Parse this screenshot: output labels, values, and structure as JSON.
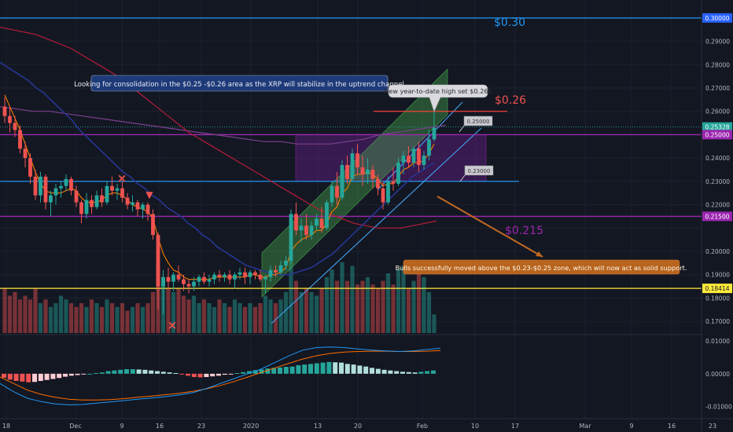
{
  "chart_data": [
    {
      "type": "candlestick",
      "title": "",
      "ylabel": "",
      "ylim": [
        0.165,
        0.305
      ],
      "grid": true,
      "price_axis_ticks": [
        "0.29000",
        "0.28000",
        "0.27000",
        "0.26000",
        "0.24000",
        "0.23000",
        "0.22000",
        "0.20000",
        "0.19000",
        "0.18000",
        "0.17000"
      ],
      "price_tags": [
        {
          "label": "0.30000",
          "value": 0.3,
          "color": "#2962ff"
        },
        {
          "label": "0.25328",
          "value": 0.25328,
          "color": "#26a69a"
        },
        {
          "label": "0.25000",
          "value": 0.25,
          "color": "#9c27b0"
        },
        {
          "label": "0.21500",
          "value": 0.215,
          "color": "#9c27b0"
        },
        {
          "label": "0.18414",
          "value": 0.18414,
          "color": "#ffeb3b"
        }
      ],
      "x_ticks": [
        "18",
        "Dec",
        "9",
        "16",
        "23",
        "2020",
        "13",
        "20",
        "Feb",
        "10",
        "17",
        "Mar",
        "9",
        "16",
        "23"
      ],
      "ohlc": [
        [
          0.262,
          0.266,
          0.255,
          0.258
        ],
        [
          0.258,
          0.262,
          0.251,
          0.255
        ],
        [
          0.255,
          0.258,
          0.249,
          0.252
        ],
        [
          0.252,
          0.254,
          0.242,
          0.244
        ],
        [
          0.244,
          0.247,
          0.236,
          0.24
        ],
        [
          0.24,
          0.242,
          0.229,
          0.232
        ],
        [
          0.232,
          0.235,
          0.222,
          0.224
        ],
        [
          0.224,
          0.234,
          0.221,
          0.232
        ],
        [
          0.232,
          0.233,
          0.218,
          0.221
        ],
        [
          0.221,
          0.226,
          0.215,
          0.224
        ],
        [
          0.224,
          0.229,
          0.22,
          0.227
        ],
        [
          0.227,
          0.23,
          0.223,
          0.228
        ],
        [
          0.228,
          0.233,
          0.226,
          0.231
        ],
        [
          0.231,
          0.232,
          0.224,
          0.226
        ],
        [
          0.226,
          0.228,
          0.219,
          0.221
        ],
        [
          0.221,
          0.222,
          0.212,
          0.216
        ],
        [
          0.216,
          0.225,
          0.214,
          0.222
        ],
        [
          0.222,
          0.224,
          0.216,
          0.219
        ],
        [
          0.219,
          0.226,
          0.218,
          0.224
        ],
        [
          0.224,
          0.227,
          0.219,
          0.221
        ],
        [
          0.221,
          0.23,
          0.22,
          0.228
        ],
        [
          0.228,
          0.232,
          0.224,
          0.226
        ],
        [
          0.226,
          0.229,
          0.222,
          0.227
        ],
        [
          0.227,
          0.23,
          0.221,
          0.223
        ],
        [
          0.223,
          0.225,
          0.218,
          0.22
        ],
        [
          0.22,
          0.224,
          0.217,
          0.221
        ],
        [
          0.221,
          0.222,
          0.215,
          0.218
        ],
        [
          0.218,
          0.221,
          0.214,
          0.22
        ],
        [
          0.22,
          0.221,
          0.213,
          0.216
        ],
        [
          0.216,
          0.218,
          0.205,
          0.207
        ],
        [
          0.207,
          0.208,
          0.175,
          0.185
        ],
        [
          0.185,
          0.192,
          0.173,
          0.189
        ],
        [
          0.189,
          0.193,
          0.184,
          0.187
        ],
        [
          0.187,
          0.191,
          0.183,
          0.19
        ],
        [
          0.19,
          0.194,
          0.187,
          0.188
        ],
        [
          0.188,
          0.19,
          0.183,
          0.186
        ],
        [
          0.186,
          0.188,
          0.182,
          0.185
        ],
        [
          0.185,
          0.189,
          0.183,
          0.187
        ],
        [
          0.187,
          0.19,
          0.185,
          0.189
        ],
        [
          0.189,
          0.191,
          0.186,
          0.187
        ],
        [
          0.187,
          0.19,
          0.185,
          0.188
        ],
        [
          0.188,
          0.191,
          0.186,
          0.19
        ],
        [
          0.19,
          0.192,
          0.187,
          0.189
        ],
        [
          0.189,
          0.191,
          0.187,
          0.19
        ],
        [
          0.19,
          0.192,
          0.186,
          0.188
        ],
        [
          0.188,
          0.191,
          0.184,
          0.19
        ],
        [
          0.19,
          0.193,
          0.188,
          0.191
        ],
        [
          0.191,
          0.193,
          0.186,
          0.189
        ],
        [
          0.189,
          0.192,
          0.186,
          0.191
        ],
        [
          0.191,
          0.192,
          0.188,
          0.19
        ],
        [
          0.19,
          0.192,
          0.187,
          0.188
        ],
        [
          0.188,
          0.19,
          0.182,
          0.189
        ],
        [
          0.189,
          0.194,
          0.187,
          0.192
        ],
        [
          0.192,
          0.194,
          0.189,
          0.191
        ],
        [
          0.191,
          0.196,
          0.19,
          0.194
        ],
        [
          0.194,
          0.198,
          0.192,
          0.196
        ],
        [
          0.196,
          0.218,
          0.195,
          0.216
        ],
        [
          0.216,
          0.221,
          0.207,
          0.209
        ],
        [
          0.209,
          0.214,
          0.204,
          0.211
        ],
        [
          0.211,
          0.216,
          0.205,
          0.207
        ],
        [
          0.207,
          0.213,
          0.205,
          0.211
        ],
        [
          0.211,
          0.216,
          0.209,
          0.214
        ],
        [
          0.214,
          0.219,
          0.208,
          0.21
        ],
        [
          0.21,
          0.222,
          0.209,
          0.221
        ],
        [
          0.221,
          0.23,
          0.219,
          0.228
        ],
        [
          0.228,
          0.234,
          0.22,
          0.223
        ],
        [
          0.223,
          0.239,
          0.222,
          0.237
        ],
        [
          0.237,
          0.241,
          0.229,
          0.231
        ],
        [
          0.231,
          0.244,
          0.23,
          0.242
        ],
        [
          0.242,
          0.246,
          0.233,
          0.236
        ],
        [
          0.236,
          0.241,
          0.228,
          0.233
        ],
        [
          0.233,
          0.24,
          0.229,
          0.235
        ],
        [
          0.235,
          0.237,
          0.227,
          0.231
        ],
        [
          0.231,
          0.233,
          0.224,
          0.227
        ],
        [
          0.227,
          0.23,
          0.218,
          0.221
        ],
        [
          0.221,
          0.232,
          0.22,
          0.23
        ],
        [
          0.23,
          0.236,
          0.226,
          0.229
        ],
        [
          0.229,
          0.24,
          0.228,
          0.238
        ],
        [
          0.238,
          0.243,
          0.233,
          0.241
        ],
        [
          0.241,
          0.245,
          0.236,
          0.238
        ],
        [
          0.238,
          0.245,
          0.236,
          0.244
        ],
        [
          0.244,
          0.247,
          0.234,
          0.237
        ],
        [
          0.237,
          0.243,
          0.235,
          0.241
        ],
        [
          0.241,
          0.252,
          0.239,
          0.248
        ],
        [
          0.248,
          0.261,
          0.247,
          0.253
        ]
      ],
      "volume": [
        0.6,
        0.5,
        0.55,
        0.45,
        0.5,
        0.45,
        0.6,
        0.4,
        0.45,
        0.35,
        0.4,
        0.5,
        0.45,
        0.4,
        0.35,
        0.4,
        0.35,
        0.45,
        0.4,
        0.35,
        0.45,
        0.4,
        0.35,
        0.4,
        0.3,
        0.35,
        0.4,
        0.35,
        0.4,
        0.55,
        0.9,
        0.7,
        0.6,
        0.55,
        0.6,
        0.5,
        0.45,
        0.5,
        0.4,
        0.45,
        0.4,
        0.35,
        0.45,
        0.4,
        0.35,
        0.45,
        0.4,
        0.35,
        0.4,
        0.35,
        0.4,
        0.5,
        0.45,
        0.4,
        0.45,
        0.55,
        1.0,
        0.7,
        0.55,
        0.6,
        0.55,
        0.5,
        0.6,
        0.75,
        0.85,
        0.7,
        0.95,
        0.7,
        0.9,
        0.65,
        0.7,
        0.75,
        0.65,
        0.6,
        0.7,
        0.8,
        0.65,
        0.85,
        0.9,
        0.6,
        0.7,
        0.95,
        0.75,
        0.55,
        0.25
      ],
      "indicators": {
        "blue_ma": [
          0.281,
          0.279,
          0.277,
          0.275,
          0.273,
          0.27,
          0.268,
          0.265,
          0.262,
          0.259,
          0.256,
          0.252,
          0.249,
          0.246,
          0.243,
          0.24,
          0.237,
          0.234,
          0.232,
          0.229,
          0.227,
          0.224,
          0.222,
          0.219,
          0.217,
          0.215,
          0.212,
          0.21,
          0.207,
          0.205,
          0.202,
          0.2,
          0.198,
          0.196,
          0.194,
          0.193,
          0.192,
          0.191,
          0.19,
          0.19,
          0.19,
          0.191,
          0.192,
          0.193,
          0.195,
          0.197,
          0.199,
          0.202,
          0.205,
          0.208,
          0.211,
          0.214,
          0.217,
          0.22,
          0.223,
          0.226,
          0.229,
          0.232,
          0.234,
          0.236,
          0.238
        ],
        "red_ma": [
          0.296,
          0.295,
          0.294,
          0.293,
          0.291,
          0.289,
          0.287,
          0.284,
          0.281,
          0.278,
          0.275,
          0.271,
          0.267,
          0.263,
          0.259,
          0.255,
          0.251,
          0.248,
          0.245,
          0.242,
          0.239,
          0.236,
          0.233,
          0.23,
          0.227,
          0.224,
          0.221,
          0.218,
          0.216,
          0.214,
          0.212,
          0.211,
          0.21,
          0.21,
          0.21,
          0.211,
          0.212,
          0.213
        ],
        "purple_ma": [
          0.262,
          0.261,
          0.26,
          0.26,
          0.259,
          0.258,
          0.257,
          0.256,
          0.255,
          0.254,
          0.253,
          0.252,
          0.251,
          0.25,
          0.249,
          0.248,
          0.247,
          0.247,
          0.246,
          0.246,
          0.246,
          0.247,
          0.248,
          0.25,
          0.251,
          0.252,
          0.253,
          0.254
        ],
        "orange_ma": [
          0.267,
          0.262,
          0.257,
          0.252,
          0.246,
          0.24,
          0.234,
          0.229,
          0.226,
          0.225,
          0.225,
          0.225,
          0.226,
          0.227,
          0.226,
          0.223,
          0.221,
          0.221,
          0.221,
          0.222,
          0.224,
          0.225,
          0.225,
          0.224,
          0.222,
          0.22,
          0.219,
          0.218,
          0.217,
          0.214,
          0.206,
          0.199,
          0.195,
          0.192,
          0.191,
          0.189,
          0.188,
          0.188,
          0.188,
          0.188,
          0.188,
          0.189,
          0.189,
          0.189,
          0.189,
          0.189,
          0.189,
          0.189,
          0.19,
          0.19,
          0.189,
          0.189,
          0.19,
          0.19,
          0.191,
          0.193,
          0.2,
          0.203,
          0.205,
          0.206,
          0.207,
          0.209,
          0.209,
          0.212,
          0.217,
          0.219,
          0.225,
          0.227,
          0.232,
          0.233,
          0.233,
          0.234,
          0.233,
          0.231,
          0.228,
          0.229,
          0.229,
          0.232,
          0.235,
          0.236,
          0.238,
          0.238,
          0.239,
          0.242,
          0.246
        ]
      },
      "annotations": {
        "top_note": "Looking for consolidation in the $0.25 -$0.26 area as the XRP will stabilize in the uptrend channel",
        "high_note": "New year-to-date high set $0.261",
        "bottom_note": "Bulls successfully moved above the $0.23-$0.25 zone, which will now act as solid support.",
        "label_030": "$0.30",
        "label_026": "$0.26",
        "label_0215": "$0.215",
        "box_top_tag": "0.25000",
        "box_bottom_tag": "0.23000",
        "marker_x": "×",
        "marker_arrow": "▼"
      },
      "levels": {
        "blue_top": 0.3,
        "purple_upper": 0.25,
        "blue_mid": 0.23,
        "purple_lower": 0.215,
        "yellow": 0.18414,
        "red_high": 0.26,
        "teal_dotted": 0.25328
      },
      "colors": {
        "background": "#131722",
        "up": "#26a69a",
        "down": "#ef5350",
        "blue_level": "#2196f3",
        "purple_level": "#9c27b0",
        "yellow_level": "#ffeb3b",
        "red_level": "#f44336",
        "box": "#7b1fa2",
        "channel": "#4caf50"
      }
    },
    {
      "type": "macd",
      "ylim": [
        -0.013,
        0.011
      ],
      "axis_ticks": [
        "0.01000",
        "0.00000",
        "-0.01000"
      ],
      "histogram": [
        -0.0012,
        -0.0018,
        -0.0022,
        -0.0024,
        -0.0026,
        -0.0025,
        -0.0022,
        -0.0019,
        -0.0016,
        -0.0013,
        -0.0009,
        -0.0006,
        -0.0004,
        -0.0002,
        0.0,
        0.0002,
        0.0004,
        0.0008,
        0.001,
        0.0012,
        0.0014,
        0.0014,
        0.0013,
        0.0012,
        0.001,
        0.0008,
        0.0006,
        0.0004,
        0.0002,
        -0.0002,
        -0.0006,
        -0.001,
        -0.0011,
        -0.001,
        -0.0008,
        -0.0006,
        -0.0003,
        -0.0001,
        0.0002,
        0.0005,
        0.0008,
        0.0011,
        0.0013,
        0.0016,
        0.0018,
        0.0019,
        0.0021,
        0.0022,
        0.0026,
        0.0028,
        0.003,
        0.0032,
        0.0034,
        0.0036,
        0.0035,
        0.0034,
        0.003,
        0.0028,
        0.0025,
        0.0022,
        0.0018,
        0.0015,
        0.0012,
        0.001,
        0.0008,
        0.0006,
        0.0005,
        0.0004,
        0.0006,
        0.0008,
        0.001
      ],
      "macd_line": [
        -0.003,
        -0.0055,
        -0.0075,
        -0.0085,
        -0.0092,
        -0.0095,
        -0.0094,
        -0.009,
        -0.0086,
        -0.0082,
        -0.0078,
        -0.0074,
        -0.007,
        -0.0065,
        -0.0058,
        -0.0045,
        -0.003,
        -0.0015,
        0.0,
        0.0015,
        0.0035,
        0.0055,
        0.0072,
        0.008,
        0.0082,
        0.008,
        0.0076,
        0.0072,
        0.007,
        0.0068,
        0.007,
        0.0074,
        0.0078
      ],
      "signal_line": [
        -0.001,
        -0.003,
        -0.005,
        -0.0063,
        -0.0072,
        -0.0078,
        -0.008,
        -0.008,
        -0.0079,
        -0.0076,
        -0.0072,
        -0.0068,
        -0.0064,
        -0.006,
        -0.0054,
        -0.0046,
        -0.0036,
        -0.0024,
        -0.001,
        0.0004,
        0.0018,
        0.0032,
        0.0045,
        0.0055,
        0.0062,
        0.0066,
        0.0068,
        0.0069,
        0.0069,
        0.0068,
        0.0068,
        0.0069,
        0.0071
      ]
    }
  ]
}
